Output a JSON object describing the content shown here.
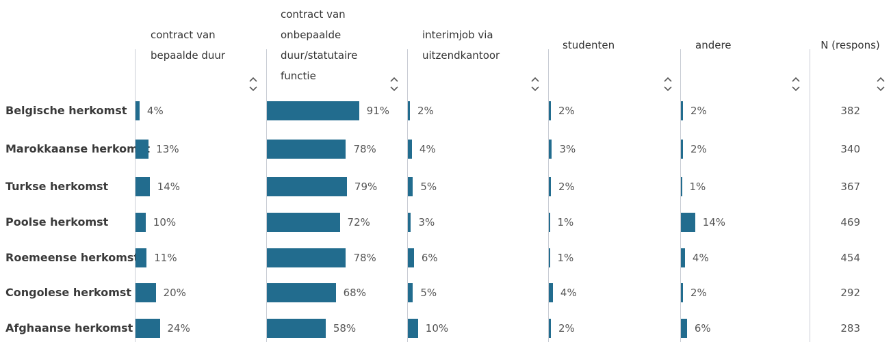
{
  "table": {
    "headers": [
      "contract van bepaalde duur",
      "contract van onbepaalde duur/statutaire functie",
      "interimjob via uitzendkantoor",
      "studenten",
      "andere",
      "N (respons)"
    ],
    "color": "#226c8e",
    "rows": [
      {
        "label": "Belgische herkomst",
        "values": [
          4,
          91,
          2,
          2,
          2
        ],
        "value_labels": [
          "4%",
          "91%",
          "2%",
          "2%",
          "2%"
        ],
        "n": 382
      },
      {
        "label": "Marokkaanse herkomst",
        "values": [
          13,
          78,
          4,
          3,
          2
        ],
        "value_labels": [
          "13%",
          "78%",
          "4%",
          "3%",
          "2%"
        ],
        "n": 340
      },
      {
        "label": "Turkse herkomst",
        "values": [
          14,
          79,
          5,
          2,
          1
        ],
        "value_labels": [
          "14%",
          "79%",
          "5%",
          "2%",
          "1%"
        ],
        "n": 367
      },
      {
        "label": "Poolse herkomst",
        "values": [
          10,
          72,
          3,
          1,
          14
        ],
        "value_labels": [
          "10%",
          "72%",
          "3%",
          "1%",
          "14%"
        ],
        "n": 469
      },
      {
        "label": "Roemeense herkomst",
        "values": [
          11,
          78,
          6,
          1,
          4
        ],
        "value_labels": [
          "11%",
          "78%",
          "6%",
          "1%",
          "4%"
        ],
        "n": 454
      },
      {
        "label": "Congolese herkomst",
        "values": [
          20,
          68,
          5,
          4,
          2
        ],
        "value_labels": [
          "20%",
          "68%",
          "5%",
          "4%",
          "2%"
        ],
        "n": 292
      },
      {
        "label": "Afghaanse herkomst",
        "values": [
          24,
          58,
          10,
          2,
          6
        ],
        "value_labels": [
          "24%",
          "58%",
          "10%",
          "2%",
          "6%"
        ],
        "n": 283
      }
    ]
  }
}
